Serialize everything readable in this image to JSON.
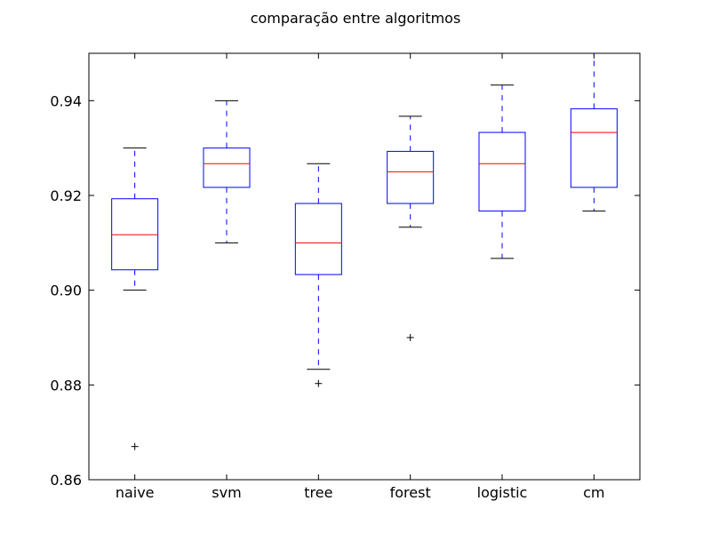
{
  "chart_data": {
    "type": "box",
    "title": "comparação entre algoritmos",
    "xlabel": "",
    "ylabel": "",
    "ylim": [
      0.86,
      0.95
    ],
    "yticks": [
      0.86,
      0.88,
      0.9,
      0.92,
      0.94
    ],
    "ytick_labels": [
      "0.86",
      "0.88",
      "0.90",
      "0.92",
      "0.94"
    ],
    "categories": [
      "naive",
      "svm",
      "tree",
      "forest",
      "logistic",
      "cm"
    ],
    "series": [
      {
        "category": "naive",
        "whisker_low": 0.9,
        "q1": 0.9043,
        "median": 0.9117,
        "q3": 0.9193,
        "whisker_high": 0.93,
        "outliers": [
          0.867
        ]
      },
      {
        "category": "svm",
        "whisker_low": 0.91,
        "q1": 0.9217,
        "median": 0.9267,
        "q3": 0.93,
        "whisker_high": 0.94,
        "outliers": []
      },
      {
        "category": "tree",
        "whisker_low": 0.8833,
        "q1": 0.9033,
        "median": 0.91,
        "q3": 0.9183,
        "whisker_high": 0.9267,
        "outliers": [
          0.8803
        ]
      },
      {
        "category": "forest",
        "whisker_low": 0.9133,
        "q1": 0.9183,
        "median": 0.925,
        "q3": 0.9293,
        "whisker_high": 0.9367,
        "outliers": [
          0.89
        ]
      },
      {
        "category": "logistic",
        "whisker_low": 0.9067,
        "q1": 0.9167,
        "median": 0.9267,
        "q3": 0.9333,
        "whisker_high": 0.9433,
        "outliers": []
      },
      {
        "category": "cm",
        "whisker_low": 0.9167,
        "q1": 0.9217,
        "median": 0.9333,
        "q3": 0.9383,
        "whisker_high": 0.95,
        "outliers": []
      }
    ],
    "colors": {
      "box": "#0000ff",
      "median": "#ff0000",
      "whisker": "#0000ff",
      "cap": "#000000",
      "outlier": "#000000"
    },
    "grid": false,
    "legend": "none"
  }
}
